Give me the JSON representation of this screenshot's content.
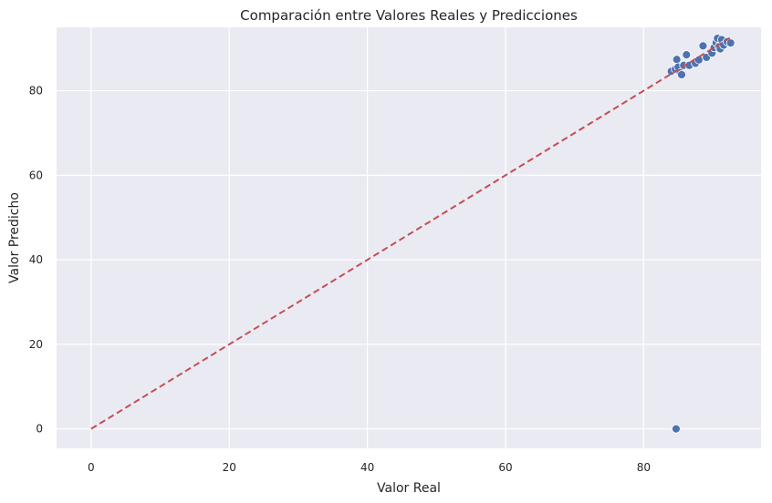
{
  "chart_data": {
    "type": "scatter",
    "title": "Comparación entre Valores Reales y Predicciones",
    "xlabel": "Valor Real",
    "ylabel": "Valor Predicho",
    "xlim": [
      -5,
      97
    ],
    "ylim": [
      -4.6,
      95
    ],
    "xticks": [
      0,
      20,
      40,
      60,
      80
    ],
    "yticks": [
      0,
      20,
      40,
      60,
      80
    ],
    "grid": true,
    "background": "#EAEAF2",
    "point_color": "#4C72B0",
    "reference_line": {
      "from": [
        0,
        0
      ],
      "to": [
        92.5,
        92.5
      ],
      "style": "dashed",
      "color": "#C44E52"
    },
    "points": [
      {
        "x": 84.7,
        "y": 0.0
      },
      {
        "x": 84.0,
        "y": 84.6
      },
      {
        "x": 84.6,
        "y": 85.1
      },
      {
        "x": 84.8,
        "y": 87.4
      },
      {
        "x": 85.0,
        "y": 85.6
      },
      {
        "x": 85.3,
        "y": 84.3
      },
      {
        "x": 85.5,
        "y": 83.8
      },
      {
        "x": 85.8,
        "y": 86.0
      },
      {
        "x": 86.2,
        "y": 88.5
      },
      {
        "x": 86.6,
        "y": 86.0
      },
      {
        "x": 87.5,
        "y": 86.5
      },
      {
        "x": 88.0,
        "y": 87.3
      },
      {
        "x": 88.6,
        "y": 90.6
      },
      {
        "x": 89.1,
        "y": 87.9
      },
      {
        "x": 89.9,
        "y": 88.9
      },
      {
        "x": 90.2,
        "y": 90.2
      },
      {
        "x": 90.5,
        "y": 91.4
      },
      {
        "x": 90.7,
        "y": 92.4
      },
      {
        "x": 90.9,
        "y": 90.4
      },
      {
        "x": 91.1,
        "y": 89.9
      },
      {
        "x": 91.3,
        "y": 92.1
      },
      {
        "x": 91.6,
        "y": 90.8
      },
      {
        "x": 92.1,
        "y": 91.6
      },
      {
        "x": 92.6,
        "y": 91.3
      }
    ]
  }
}
